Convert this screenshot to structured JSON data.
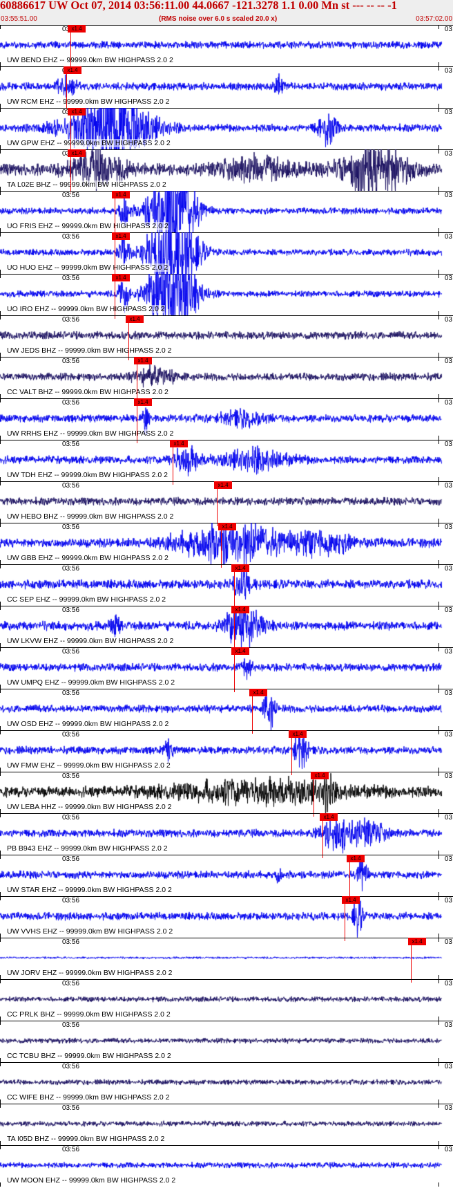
{
  "header": {
    "title": "60886617 UW Oct 07, 2014 03:56:11.00   44.0667 -121.3278  1.1 0.00 Mn st --- -- --  -1",
    "start_time": "03:55:51.00",
    "subtitle": "(RMS noise over 6.0 s scaled 20.0 x)",
    "end_time": "03:57:02.00"
  },
  "time_mark_left": "03:56",
  "time_mark_right": "03",
  "pick_label": "x1.4",
  "colors": {
    "trace_blue": "#0000ee",
    "trace_dark": "#1a1060",
    "trace_black": "#000000",
    "pick_red": "#ee0000",
    "header_text": "#c00000"
  },
  "stations": [
    {
      "label": "UW BEND EHZ -- 99999.0km BW  HIGHPASS  2.0  2",
      "color": "#0000ee",
      "amp": 0.28,
      "events": [],
      "pick": 0.16
    },
    {
      "label": "UW RCM EHZ -- 99999.0km BW  HIGHPASS  2.0  2",
      "color": "#0000ee",
      "amp": 0.3,
      "events": [
        {
          "t": 0.15,
          "a": 0.8,
          "w": 0.02
        },
        {
          "t": 0.63,
          "a": 0.6,
          "w": 0.01
        }
      ],
      "pick": 0.15
    },
    {
      "label": "UW GPW EHZ -- 99999.0km BW  HIGHPASS  2.0  2",
      "color": "#0000ee",
      "amp": 0.3,
      "events": [
        {
          "t": 0.25,
          "a": 2.8,
          "w": 0.09
        },
        {
          "t": 0.74,
          "a": 1.2,
          "w": 0.02
        }
      ],
      "pick": 0.16
    },
    {
      "label": "TA L02E BHZ -- 99999.0km BW  HIGHPASS  2.0  2",
      "color": "#1a1060",
      "amp": 0.45,
      "events": [
        {
          "t": 0.22,
          "a": 1.2,
          "w": 0.06
        },
        {
          "t": 0.58,
          "a": 0.8,
          "w": 0.08
        },
        {
          "t": 0.85,
          "a": 2.2,
          "w": 0.07
        }
      ],
      "pick": 0.16
    },
    {
      "label": "UO FRIS EHZ -- 99999.0km BW  HIGHPASS  2.0  2",
      "color": "#0000ee",
      "amp": 0.25,
      "events": [
        {
          "t": 0.28,
          "a": 1.6,
          "w": 0.01
        },
        {
          "t": 0.39,
          "a": 4.0,
          "w": 0.05
        }
      ],
      "pick": 0.26
    },
    {
      "label": "UO HUO EHZ -- 99999.0km BW  HIGHPASS  2.0  2",
      "color": "#0000ee",
      "amp": 0.25,
      "events": [
        {
          "t": 0.28,
          "a": 1.6,
          "w": 0.01
        },
        {
          "t": 0.39,
          "a": 4.0,
          "w": 0.05
        }
      ],
      "pick": 0.26
    },
    {
      "label": "UO IRO EHZ -- 99999.0km BW  HIGHPASS  2.0  2",
      "color": "#0000ee",
      "amp": 0.25,
      "events": [
        {
          "t": 0.28,
          "a": 1.6,
          "w": 0.01
        },
        {
          "t": 0.39,
          "a": 4.0,
          "w": 0.05
        }
      ],
      "pick": 0.26
    },
    {
      "label": "UW JEDS BHZ -- 99999.0km BW  HIGHPASS  2.0  2",
      "color": "#1a1060",
      "amp": 0.3,
      "events": [],
      "pick": 0.29
    },
    {
      "label": "CC VALT BHZ -- 99999.0km BW  HIGHPASS  2.0  2",
      "color": "#1a1060",
      "amp": 0.3,
      "events": [
        {
          "t": 0.35,
          "a": 0.7,
          "w": 0.04
        }
      ],
      "pick": 0.31
    },
    {
      "label": "UW RRHS EHZ -- 99999.0km BW  HIGHPASS  2.0  2",
      "color": "#0000ee",
      "amp": 0.3,
      "events": [
        {
          "t": 0.33,
          "a": 1.3,
          "w": 0.006
        },
        {
          "t": 0.55,
          "a": 0.5,
          "w": 0.05
        }
      ],
      "pick": 0.31
    },
    {
      "label": "UW TDH EHZ -- 99999.0km BW  HIGHPASS  2.0  2",
      "color": "#0000ee",
      "amp": 0.3,
      "events": [
        {
          "t": 0.42,
          "a": 1.0,
          "w": 0.03
        },
        {
          "t": 0.58,
          "a": 0.9,
          "w": 0.07
        }
      ],
      "pick": 0.39
    },
    {
      "label": "UW HEBO BHZ -- 99999.0km BW  HIGHPASS  2.0  2",
      "color": "#1a1060",
      "amp": 0.3,
      "events": [],
      "pick": 0.49
    },
    {
      "label": "UW GBB EHZ -- 99999.0km BW  HIGHPASS  2.0  2",
      "color": "#0000ee",
      "amp": 0.35,
      "events": [
        {
          "t": 0.52,
          "a": 1.5,
          "w": 0.11
        },
        {
          "t": 0.72,
          "a": 0.8,
          "w": 0.08
        }
      ],
      "pick": 0.5
    },
    {
      "label": "CC SEP EHZ -- 99999.0km BW  HIGHPASS  2.0  2",
      "color": "#0000ee",
      "amp": 0.35,
      "events": [
        {
          "t": 0.55,
          "a": 1.0,
          "w": 0.02
        }
      ],
      "pick": 0.53
    },
    {
      "label": "UW LKVW EHZ -- 99999.0km BW  HIGHPASS  2.0  2",
      "color": "#0000ee",
      "amp": 0.35,
      "events": [
        {
          "t": 0.26,
          "a": 0.7,
          "w": 0.01
        },
        {
          "t": 0.55,
          "a": 1.6,
          "w": 0.04
        }
      ],
      "pick": 0.53
    },
    {
      "label": "UW UMPQ EHZ -- 99999.0km BW  HIGHPASS  2.0  2",
      "color": "#0000ee",
      "amp": 0.3,
      "events": [
        {
          "t": 0.56,
          "a": 0.8,
          "w": 0.01
        }
      ],
      "pick": 0.53
    },
    {
      "label": "UW OSD EHZ -- 99999.0km BW  HIGHPASS  2.0  2",
      "color": "#0000ee",
      "amp": 0.3,
      "events": [
        {
          "t": 0.61,
          "a": 1.6,
          "w": 0.012
        }
      ],
      "pick": 0.57
    },
    {
      "label": "UW FMW EHZ -- 99999.0km BW  HIGHPASS  2.0  2",
      "color": "#0000ee",
      "amp": 0.3,
      "events": [
        {
          "t": 0.38,
          "a": 0.7,
          "w": 0.01
        },
        {
          "t": 0.68,
          "a": 1.5,
          "w": 0.015
        }
      ],
      "pick": 0.66
    },
    {
      "label": "UW LEBA HHZ -- 99999.0km BW  HIGHPASS  2.0  2",
      "color": "#000000",
      "amp": 0.4,
      "events": [
        {
          "t": 0.6,
          "a": 0.8,
          "w": 0.2
        },
        {
          "t": 0.74,
          "a": 2.2,
          "w": 0.008
        }
      ],
      "pick": 0.71
    },
    {
      "label": "PB B943 EHZ -- 99999.0km BW  HIGHPASS  2.0  2",
      "color": "#0000ee",
      "amp": 0.3,
      "events": [
        {
          "t": 0.76,
          "a": 1.3,
          "w": 0.03
        },
        {
          "t": 0.83,
          "a": 0.9,
          "w": 0.04
        }
      ],
      "pick": 0.73
    },
    {
      "label": "UW STAR EHZ -- 99999.0km BW  HIGHPASS  2.0  2",
      "color": "#0000ee",
      "amp": 0.3,
      "events": [
        {
          "t": 0.63,
          "a": 0.9,
          "w": 0.005
        },
        {
          "t": 0.82,
          "a": 1.6,
          "w": 0.01
        }
      ],
      "pick": 0.79
    },
    {
      "label": "UW VVHS EHZ -- 99999.0km BW  HIGHPASS  2.0  2",
      "color": "#0000ee",
      "amp": 0.3,
      "events": [
        {
          "t": 0.81,
          "a": 1.4,
          "w": 0.01
        }
      ],
      "pick": 0.78
    },
    {
      "label": "UW JORV EHZ -- 99999.0km BW  HIGHPASS  2.0  2",
      "color": "#0000ee",
      "amp": 0.08,
      "events": [],
      "pick": 0.93
    },
    {
      "label": "CC PRLK BHZ -- 99999.0km BW  HIGHPASS  2.0  2",
      "color": "#1a1060",
      "amp": 0.2,
      "events": [],
      "pick": null
    },
    {
      "label": "CC TCBU BHZ -- 99999.0km BW  HIGHPASS  2.0  2",
      "color": "#1a1060",
      "amp": 0.2,
      "events": [],
      "pick": null
    },
    {
      "label": "CC WIFE BHZ -- 99999.0km BW  HIGHPASS  2.0  2",
      "color": "#1a1060",
      "amp": 0.2,
      "events": [],
      "pick": null
    },
    {
      "label": "TA I05D BHZ -- 99999.0km BW  HIGHPASS  2.0  2",
      "color": "#1a1060",
      "amp": 0.2,
      "events": [],
      "pick": null
    },
    {
      "label": "UW MOON EHZ -- 99999.0km BW  HIGHPASS  2.0  2",
      "color": "#0000ee",
      "amp": 0.22,
      "events": [],
      "pick": null
    }
  ]
}
